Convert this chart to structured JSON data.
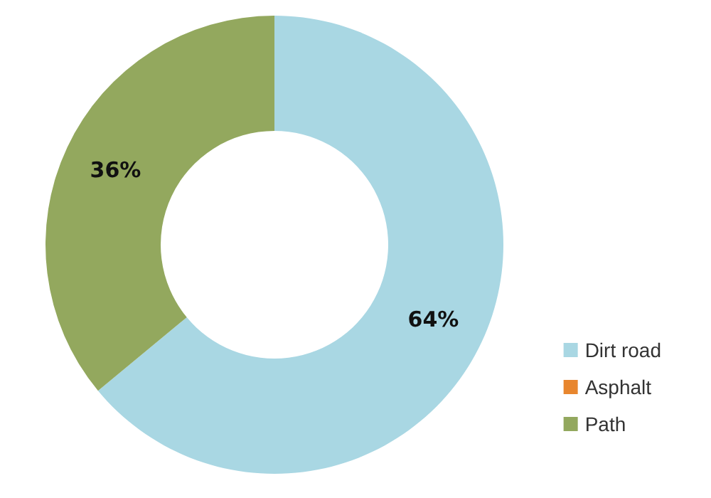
{
  "chart_data": {
    "type": "donut",
    "categories": [
      "Dirt road",
      "Asphalt",
      "Path"
    ],
    "values": [
      64,
      0,
      36
    ],
    "colors": [
      "#a9d7e3",
      "#e8862e",
      "#93a85e"
    ],
    "value_labels": [
      "64%",
      null,
      "36%"
    ],
    "legend": "bottom right"
  }
}
